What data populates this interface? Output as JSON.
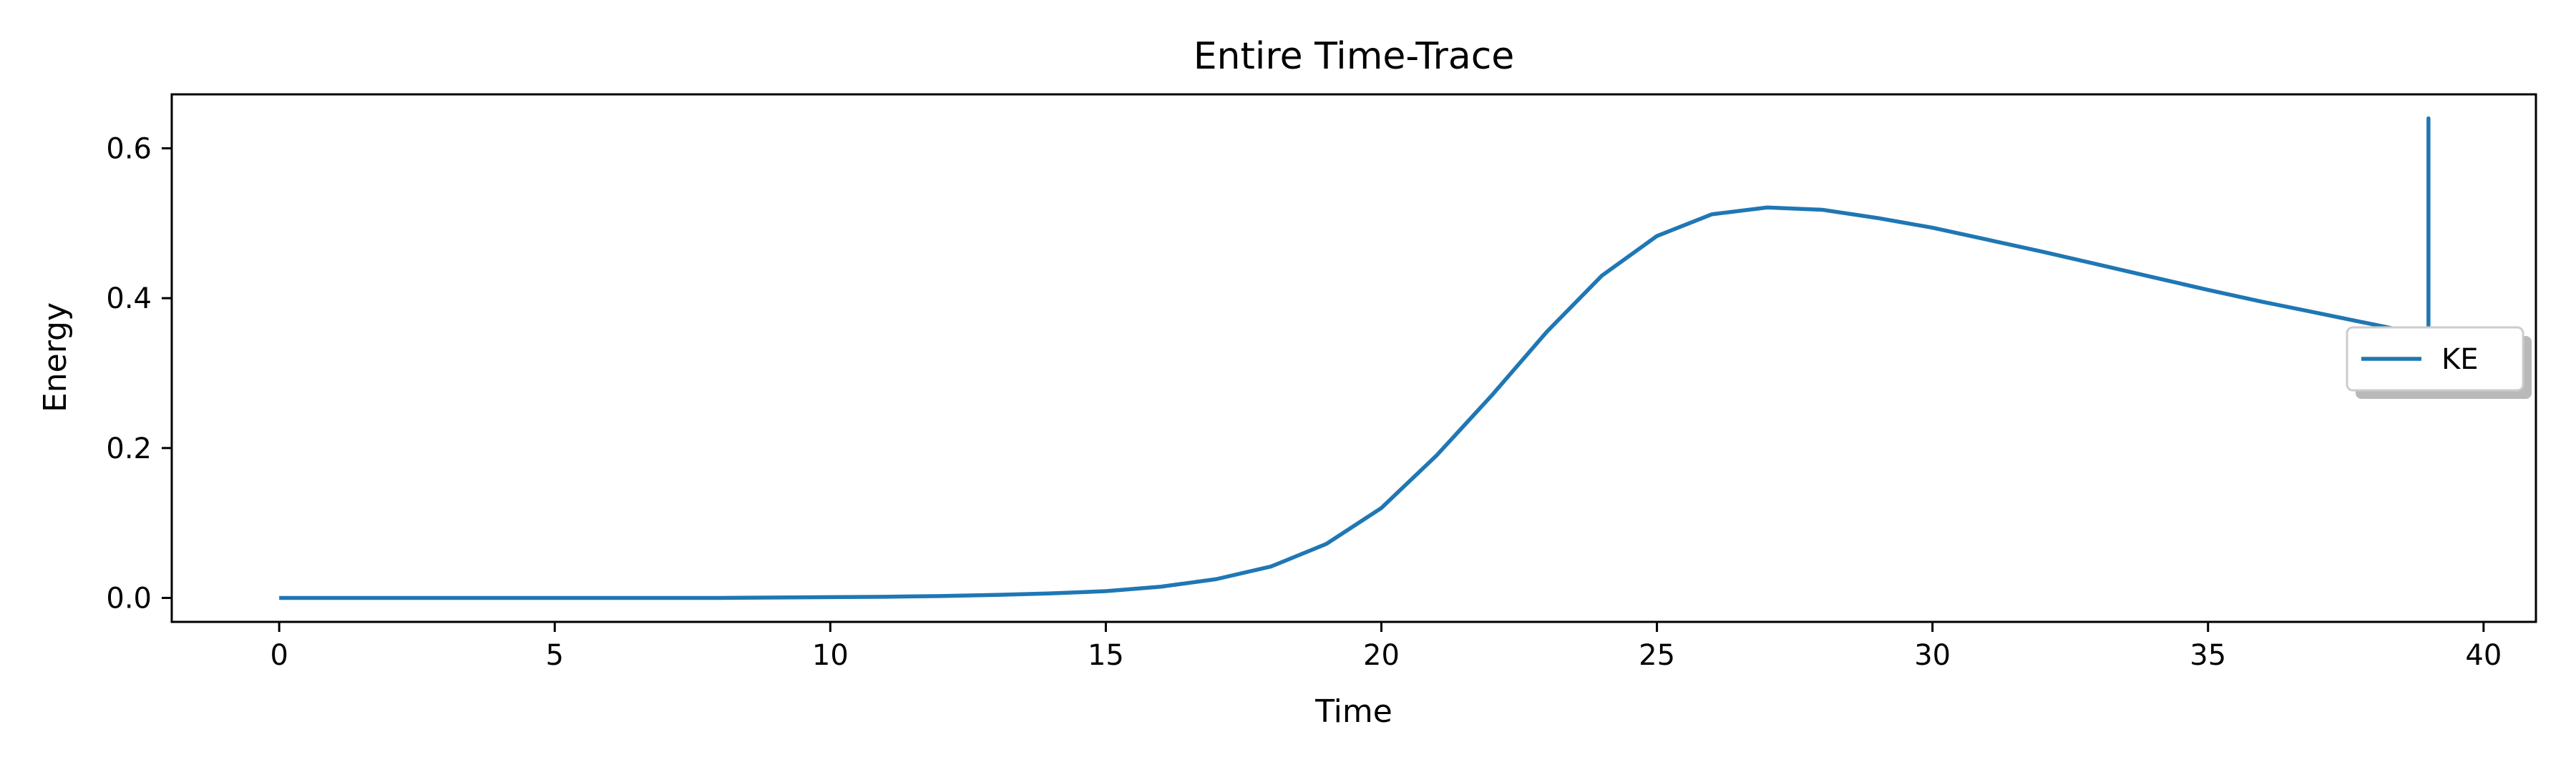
{
  "chart_data": {
    "type": "line",
    "title": "Entire Time-Trace",
    "xlabel": "Time",
    "ylabel": "Energy",
    "xlim": [
      -1.95,
      40.95
    ],
    "ylim": [
      -0.032,
      0.672
    ],
    "xticks": [
      0,
      5,
      10,
      15,
      20,
      25,
      30,
      35,
      40
    ],
    "xtick_labels": [
      "0",
      "5",
      "10",
      "15",
      "20",
      "25",
      "30",
      "35",
      "40"
    ],
    "yticks": [
      0.0,
      0.2,
      0.4,
      0.6
    ],
    "ytick_labels": [
      "0.0",
      "0.2",
      "0.4",
      "0.6"
    ],
    "grid": false,
    "legend_position": "right",
    "series": [
      {
        "name": "KE",
        "color": "#1f77b4",
        "x": [
          0,
          2,
          4,
          6,
          8,
          10,
          11,
          12,
          13,
          14,
          15,
          16,
          17,
          18,
          19,
          20,
          21,
          22,
          23,
          24,
          25,
          26,
          27,
          28,
          29,
          30,
          31,
          32,
          33,
          34,
          35,
          36,
          37,
          38,
          39,
          39,
          39
        ],
        "y": [
          0.0,
          0.0,
          0.0,
          0.0,
          0.0,
          0.001,
          0.0015,
          0.0025,
          0.004,
          0.006,
          0.009,
          0.015,
          0.025,
          0.042,
          0.072,
          0.12,
          0.19,
          0.27,
          0.355,
          0.43,
          0.483,
          0.512,
          0.521,
          0.518,
          0.507,
          0.494,
          0.478,
          0.462,
          0.445,
          0.428,
          0.411,
          0.395,
          0.38,
          0.365,
          0.35,
          0.64,
          0.35
        ]
      }
    ]
  }
}
